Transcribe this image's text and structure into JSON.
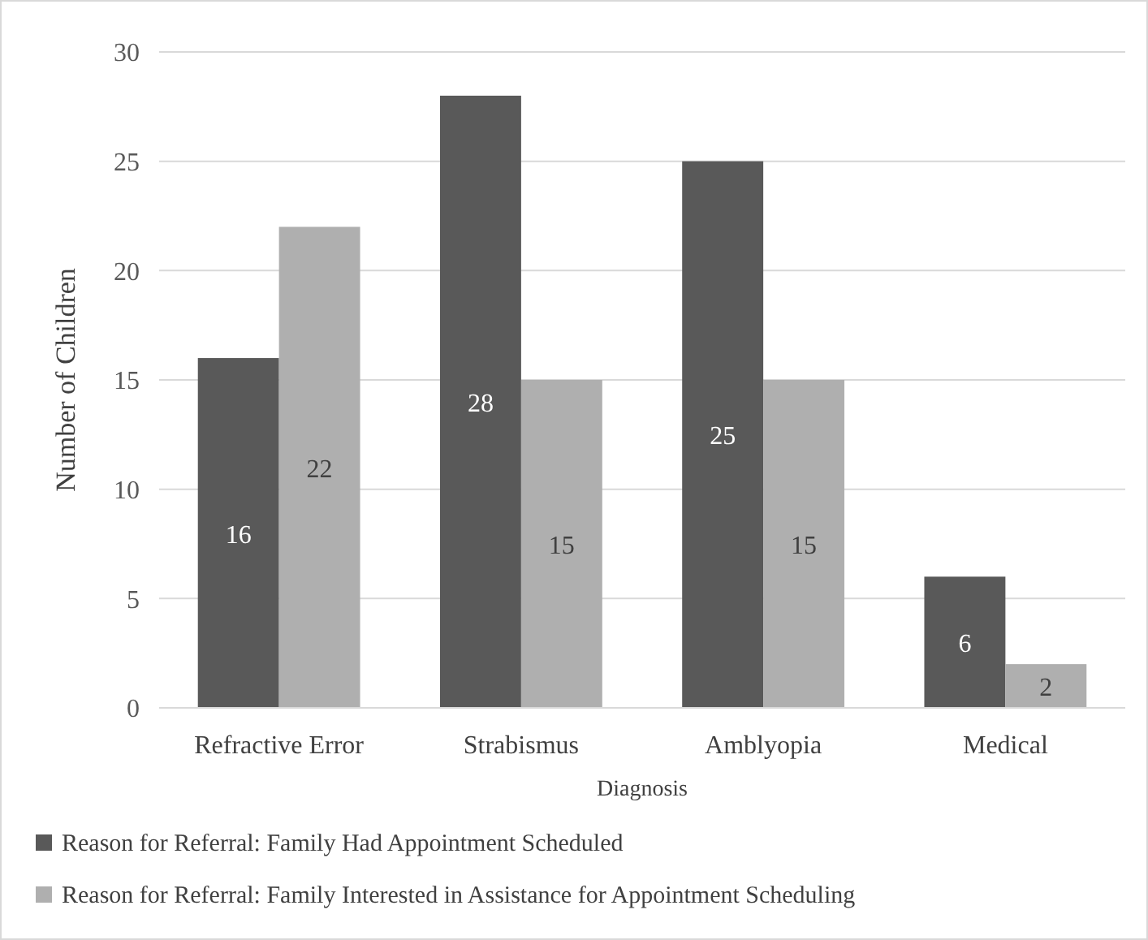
{
  "chart_data": {
    "type": "bar",
    "xlabel": "Diagnosis",
    "ylabel": "Number of Children",
    "categories": [
      "Refractive Error",
      "Strabismus",
      "Amblyopia",
      "Medical"
    ],
    "series": [
      {
        "name": "Reason for Referral: Family Had Appointment Scheduled",
        "color": "#595959",
        "values": [
          16,
          28,
          25,
          6
        ]
      },
      {
        "name": "Reason for Referral: Family Interested in Assistance for Appointment Scheduling",
        "color": "#afafaf",
        "values": [
          22,
          15,
          15,
          2
        ]
      }
    ],
    "ylim": [
      0,
      30
    ],
    "yticks": [
      0,
      5,
      10,
      15,
      20,
      25,
      30
    ],
    "grid": "y",
    "legend": "bottom",
    "data_labels": true
  }
}
